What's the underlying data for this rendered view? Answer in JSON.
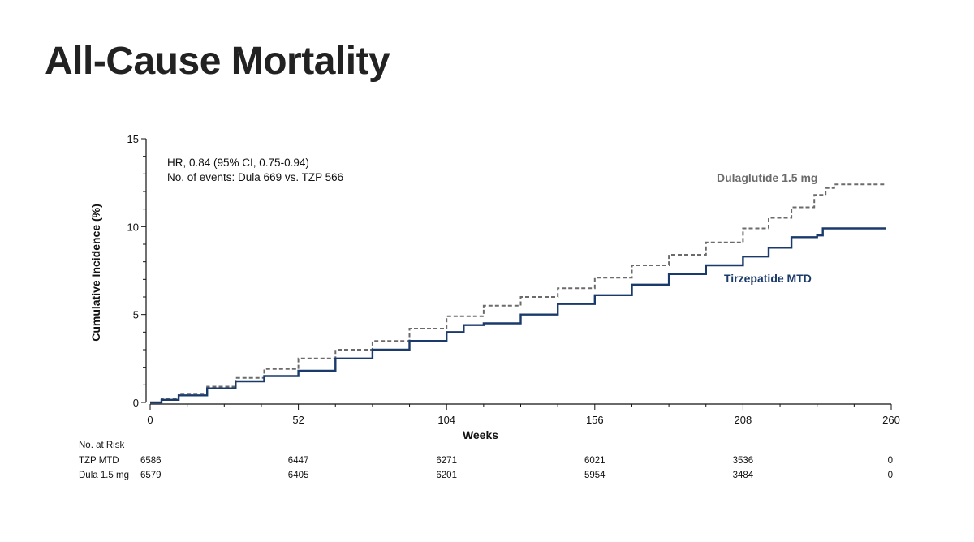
{
  "slide": {
    "title": "All-Cause Mortality"
  },
  "chart_data": {
    "type": "line",
    "title": "All-Cause Mortality",
    "xlabel": "Weeks",
    "ylabel": "Cumulative Incidence (%)",
    "xlim": [
      0,
      260
    ],
    "ylim": [
      0,
      15
    ],
    "xticks": [
      0,
      52,
      104,
      156,
      208,
      260
    ],
    "yticks": [
      0,
      5,
      10,
      15
    ],
    "grid": false,
    "annotations": [
      "HR, 0.84 (95% CI, 0.75-0.94)",
      "No. of events: Dula 669 vs. TZP 566"
    ],
    "series": [
      {
        "name": "Dulaglutide 1.5 mg",
        "color": "#6b6b6b",
        "style": "dashed",
        "x": [
          0,
          4,
          10,
          20,
          30,
          40,
          52,
          65,
          78,
          91,
          104,
          117,
          130,
          143,
          156,
          169,
          182,
          195,
          208,
          217,
          225,
          233,
          237,
          240,
          248,
          258
        ],
        "y": [
          0,
          0.2,
          0.5,
          0.9,
          1.4,
          1.9,
          2.5,
          3.0,
          3.5,
          4.2,
          4.9,
          5.5,
          6.0,
          6.5,
          7.1,
          7.8,
          8.4,
          9.1,
          9.9,
          10.5,
          11.1,
          11.8,
          12.2,
          12.4,
          12.4,
          12.4
        ]
      },
      {
        "name": "Tirzepatide MTD",
        "color": "#1a3a6b",
        "style": "solid",
        "x": [
          0,
          4,
          10,
          20,
          30,
          40,
          52,
          65,
          78,
          91,
          104,
          110,
          117,
          130,
          143,
          156,
          169,
          182,
          195,
          208,
          217,
          225,
          234,
          236,
          248,
          258
        ],
        "y": [
          0,
          0.15,
          0.4,
          0.8,
          1.2,
          1.5,
          1.8,
          2.5,
          3.0,
          3.5,
          4.0,
          4.4,
          4.5,
          5.0,
          5.6,
          6.1,
          6.7,
          7.3,
          7.8,
          8.3,
          8.8,
          9.4,
          9.5,
          9.9,
          9.9,
          9.9
        ]
      }
    ],
    "series_labels": {
      "dula": "Dulaglutide 1.5 mg",
      "tzp": "Tirzepatide MTD"
    },
    "at_risk": {
      "header": "No. at Risk",
      "weeks": [
        0,
        52,
        104,
        156,
        208,
        260
      ],
      "rows": [
        {
          "label": "TZP MTD",
          "values": [
            "6586",
            "6447",
            "6271",
            "6021",
            "3536",
            "0"
          ]
        },
        {
          "label": "Dula 1.5 mg",
          "values": [
            "6579",
            "6405",
            "6201",
            "5954",
            "3484",
            "0"
          ]
        }
      ]
    }
  }
}
